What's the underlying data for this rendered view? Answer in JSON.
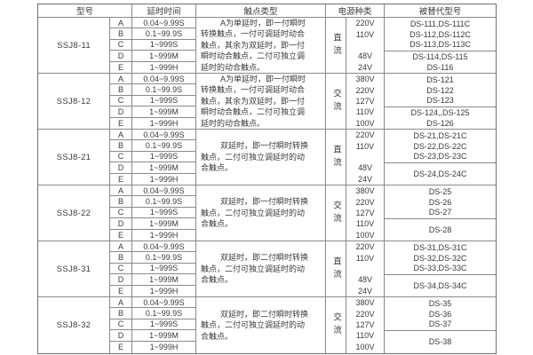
{
  "header": {
    "model": "型号",
    "delay": "延时时间",
    "contact": "触点类型",
    "power": "电源种类",
    "replaced": "被替代型号"
  },
  "blocks": [
    {
      "model": "SSJ8-11",
      "rows": [
        {
          "letter": "A",
          "delay": "0.04~9.99S"
        },
        {
          "letter": "B",
          "delay": "0.1~99.9S"
        },
        {
          "letter": "C",
          "delay": "1~999S"
        },
        {
          "letter": "D",
          "delay": "1~999M"
        },
        {
          "letter": "E",
          "delay": "1~999H"
        }
      ],
      "contact": [
        "A为单延时，即一付瞬时",
        "转换触点，一付可调延时动合",
        "触点，其余为双延时，即一付",
        "瞬时动合触点，二付可独立调",
        "延时的动合触点。"
      ],
      "power_type": "直流",
      "voltages": [
        "220V",
        "110V",
        "",
        "48V",
        "24V"
      ],
      "replaced_top": [
        "DS-111,DS-111C",
        "DS-112,DS-112C",
        "DS-113,DS-113C"
      ],
      "replaced_bottom": [
        "DS-114,DS-115",
        "DS-116"
      ]
    },
    {
      "model": "SSJ8-12",
      "rows": [
        {
          "letter": "A",
          "delay": "0.04~9.99S"
        },
        {
          "letter": "B",
          "delay": "0.1~99.9S"
        },
        {
          "letter": "C",
          "delay": "1~999S"
        },
        {
          "letter": "D",
          "delay": "1~999M"
        },
        {
          "letter": "E",
          "delay": "1~999H"
        }
      ],
      "contact": [
        "A为单延时，即一付瞬时",
        "转换触点，一付可调延时动合",
        "触点，其余为双延时，即一付",
        "瞬时动合触点，二付可独立调",
        "延时的动合触点。"
      ],
      "power_type": "交流",
      "voltages": [
        "380V",
        "220V",
        "127V",
        "110V",
        "100V"
      ],
      "replaced_top": [
        "DS-121",
        "DS-122",
        "DS-123"
      ],
      "replaced_bottom": [
        "DS-124,,DS-125",
        "DS-126"
      ]
    },
    {
      "model": "SSJ8-21",
      "rows": [
        {
          "letter": "A",
          "delay": "0.04~9.99S"
        },
        {
          "letter": "B",
          "delay": "0.1~99.9S"
        },
        {
          "letter": "C",
          "delay": "1~999S"
        },
        {
          "letter": "D",
          "delay": "1~999M"
        },
        {
          "letter": "E",
          "delay": "1~999H"
        }
      ],
      "contact": [
        "双延时，即一付瞬时转换",
        "触点，二付可独立调延时的动",
        "合触点。"
      ],
      "power_type": "直流",
      "voltages": [
        "220V",
        "110V",
        "",
        "48V",
        "24V"
      ],
      "replaced_top": [
        "DS-21,DS-21C",
        "DS-22,DS-22C",
        "DS-23,DS-23C"
      ],
      "replaced_bottom": [
        "DS-24,DS-24C"
      ]
    },
    {
      "model": "SSJ8-22",
      "rows": [
        {
          "letter": "A",
          "delay": "0.04~9.99S"
        },
        {
          "letter": "B",
          "delay": "0.1~99.9S"
        },
        {
          "letter": "C",
          "delay": "1~999S"
        },
        {
          "letter": "D",
          "delay": "1~999M"
        },
        {
          "letter": "E",
          "delay": "1~999H"
        }
      ],
      "contact": [
        "双延时，即一付瞬时转换",
        "触点，二付可独立调延时的动",
        "合触点。"
      ],
      "power_type": "交流",
      "voltages": [
        "380V",
        "220V",
        "127V",
        "110V",
        "100V"
      ],
      "replaced_top": [
        "DS-25",
        "DS-26",
        "DS-27"
      ],
      "replaced_bottom": [
        "DS-28"
      ]
    },
    {
      "model": "SSJ8-31",
      "rows": [
        {
          "letter": "A",
          "delay": "0.04~9.99S"
        },
        {
          "letter": "B",
          "delay": "0.1~99.9S"
        },
        {
          "letter": "C",
          "delay": "1~999S"
        },
        {
          "letter": "D",
          "delay": "1~999M"
        },
        {
          "letter": "E",
          "delay": "1~999H"
        }
      ],
      "contact": [
        "双延时，即二付瞬时转换",
        "触点，二付可独立调延时的动",
        "合触点。"
      ],
      "power_type": "直流",
      "voltages": [
        "220V",
        "110V",
        "",
        "48V",
        "24V"
      ],
      "replaced_top": [
        "DS-31,DS-31C",
        "DS-32,DS-32C",
        "DS-33,DS-33C"
      ],
      "replaced_bottom": [
        "DS-34,DS-34C"
      ]
    },
    {
      "model": "SSJ8-32",
      "rows": [
        {
          "letter": "A",
          "delay": "0.04~9.99S"
        },
        {
          "letter": "B",
          "delay": "0.1~99.9S"
        },
        {
          "letter": "C",
          "delay": "1~999S"
        },
        {
          "letter": "D",
          "delay": "1~999M"
        },
        {
          "letter": "E",
          "delay": "1~999H"
        }
      ],
      "contact": [
        "双延时，即二付瞬时转换",
        "触点，二付可独立调延时的动",
        "合触点。"
      ],
      "power_type": "交流",
      "voltages": [
        "380V",
        "220V",
        "127V",
        "110V",
        "100V"
      ],
      "replaced_top": [
        "DS-35",
        "DS-36",
        "DS-37"
      ],
      "replaced_bottom": [
        "DS-38"
      ]
    }
  ],
  "colors": {
    "line": "#8a8a8a",
    "outer_border": "#6f6f6f",
    "text": "#3a3a3a",
    "background": "#ffffff"
  }
}
